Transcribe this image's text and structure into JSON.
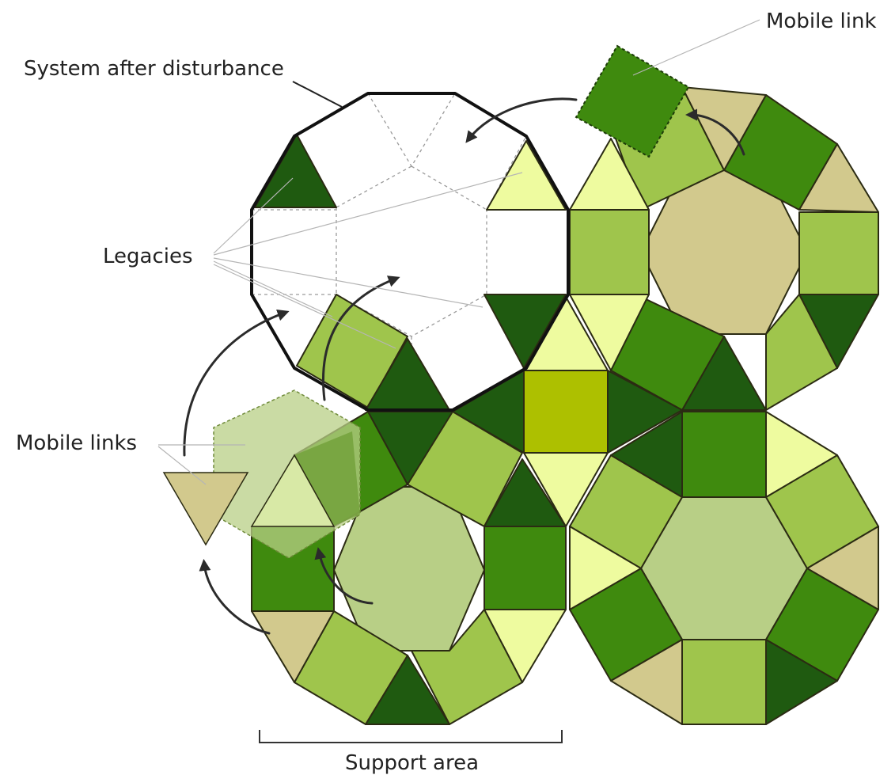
{
  "labels": {
    "system_after_disturbance": "System after disturbance",
    "mobile_link": "Mobile link",
    "legacies": "Legacies",
    "mobile_links": "Mobile links",
    "support_area": "Support area"
  },
  "colors": {
    "dark_green": "#1f5a10",
    "mid_green": "#3f8a0e",
    "light_green": "#9fc54c",
    "pale_yellow": "#eefb9f",
    "tan": "#d2c98d",
    "sage": "#b8cf86",
    "olive_yellow": "#adc000",
    "outline": "#2b2b13"
  }
}
